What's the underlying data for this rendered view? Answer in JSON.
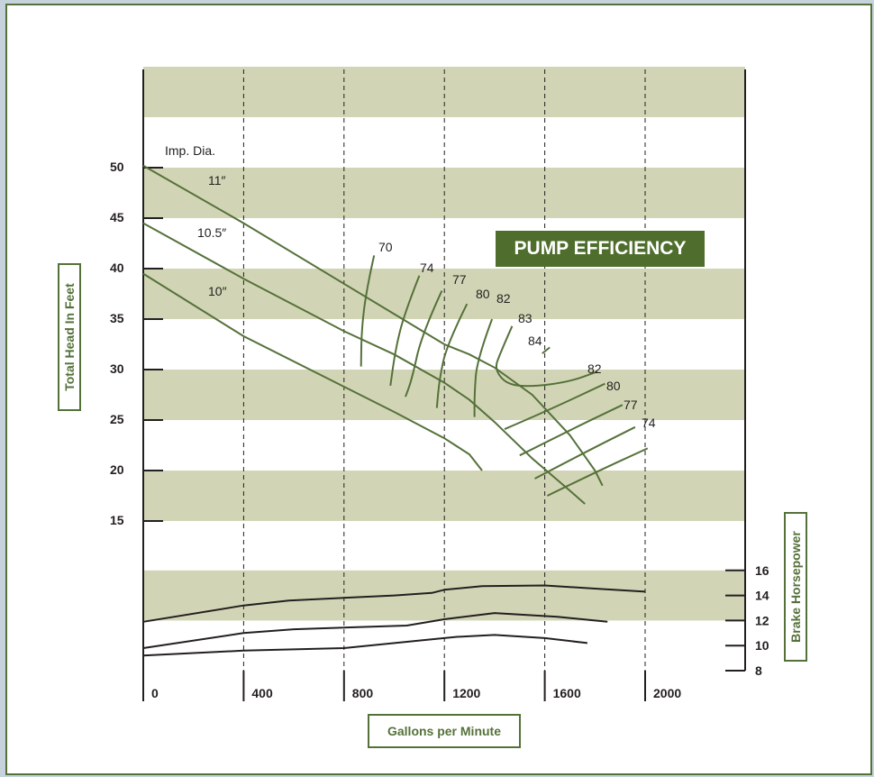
{
  "chart_data": {
    "type": "line",
    "title": "PUMP EFFICIENCY",
    "xlabel": "Gallons per Minute",
    "ylabel": "Total Head In Feet",
    "y2label": "Brake Horsepower",
    "xlim": [
      0,
      2000
    ],
    "ylim": [
      15,
      50
    ],
    "y2lim": [
      8,
      16
    ],
    "x_ticks": [
      0,
      400,
      800,
      1200,
      1600,
      2000
    ],
    "y_ticks": [
      50,
      45,
      40,
      35,
      30,
      25,
      20,
      15
    ],
    "y2_ticks": [
      16,
      14,
      12,
      10,
      8
    ],
    "grid": "vertical dashed at x ticks, alternating horizontal bands",
    "impeller_label": "Imp. Dia.",
    "head_curves": [
      {
        "name": "11″",
        "points": [
          [
            0,
            50.2
          ],
          [
            400,
            44.5
          ],
          [
            800,
            38.5
          ],
          [
            1000,
            35.5
          ],
          [
            1200,
            32.5
          ],
          [
            1300,
            31.5
          ],
          [
            1400,
            30.2
          ],
          [
            1550,
            27.5
          ],
          [
            1700,
            23.5
          ],
          [
            1800,
            20.0
          ],
          [
            1830,
            18.5
          ]
        ]
      },
      {
        "name": "10.5″",
        "points": [
          [
            0,
            44.5
          ],
          [
            400,
            39.0
          ],
          [
            800,
            33.8
          ],
          [
            1000,
            31.5
          ],
          [
            1200,
            28.7
          ],
          [
            1300,
            27.0
          ],
          [
            1400,
            24.8
          ],
          [
            1550,
            21.2
          ],
          [
            1700,
            18.0
          ],
          [
            1760,
            16.7
          ]
        ]
      },
      {
        "name": "10″",
        "points": [
          [
            0,
            39.5
          ],
          [
            400,
            33.3
          ],
          [
            800,
            28.3
          ],
          [
            1000,
            25.8
          ],
          [
            1200,
            23.2
          ],
          [
            1300,
            21.6
          ],
          [
            1350,
            20.0
          ]
        ]
      }
    ],
    "efficiency_curves": [
      {
        "label": "70",
        "points": [
          [
            920,
            41.3
          ],
          [
            890,
            38.0
          ],
          [
            870,
            34.0
          ],
          [
            868,
            30.3
          ]
        ]
      },
      {
        "label": "74",
        "points": [
          [
            1100,
            39.3
          ],
          [
            1040,
            35.5
          ],
          [
            1005,
            32.0
          ],
          [
            985,
            28.4
          ]
        ]
      },
      {
        "label": "77",
        "points": [
          [
            1190,
            37.8
          ],
          [
            1110,
            33.5
          ],
          [
            1070,
            29.0
          ],
          [
            1045,
            27.3
          ]
        ]
      },
      {
        "label": "80",
        "points": [
          [
            1290,
            36.5
          ],
          [
            1210,
            32.5
          ],
          [
            1180,
            29.0
          ],
          [
            1170,
            26.2
          ]
        ]
      },
      {
        "label": "82",
        "points": [
          [
            1390,
            35.0
          ],
          [
            1330,
            31.0
          ],
          [
            1320,
            27.6
          ],
          [
            1320,
            25.3
          ]
        ]
      },
      {
        "label": "83",
        "points": [
          [
            1470,
            34.3
          ],
          [
            1420,
            31.5
          ],
          [
            1400,
            30.0
          ],
          [
            1450,
            28.5
          ],
          [
            1550,
            28.3
          ],
          [
            1700,
            28.8
          ],
          [
            1810,
            29.8
          ]
        ]
      },
      {
        "label": "84",
        "points": [
          [
            1590,
            31.6
          ],
          [
            1620,
            32.2
          ]
        ]
      },
      {
        "label": "82",
        "points": [
          [
            1440,
            24.1
          ],
          [
            1600,
            25.8
          ],
          [
            1840,
            28.6
          ]
        ]
      },
      {
        "label": "80",
        "points": [
          [
            1500,
            21.5
          ],
          [
            1700,
            24.0
          ],
          [
            1910,
            26.5
          ]
        ]
      },
      {
        "label": "77",
        "points": [
          [
            1560,
            19.2
          ],
          [
            1760,
            21.8
          ],
          [
            1960,
            24.3
          ]
        ]
      },
      {
        "label": "74",
        "points": [
          [
            1610,
            17.5
          ],
          [
            1800,
            19.8
          ],
          [
            2010,
            22.2
          ]
        ]
      }
    ],
    "bhp_curves": [
      {
        "name": "11″",
        "points": [
          [
            0,
            11.9
          ],
          [
            400,
            13.2
          ],
          [
            580,
            13.6
          ],
          [
            1000,
            14.0
          ],
          [
            1150,
            14.2
          ],
          [
            1200,
            14.45
          ],
          [
            1350,
            14.75
          ],
          [
            1600,
            14.8
          ],
          [
            1800,
            14.55
          ],
          [
            2000,
            14.3
          ]
        ]
      },
      {
        "name": "10.5″",
        "points": [
          [
            0,
            9.8
          ],
          [
            400,
            11.0
          ],
          [
            600,
            11.3
          ],
          [
            1050,
            11.6
          ],
          [
            1200,
            12.1
          ],
          [
            1400,
            12.6
          ],
          [
            1650,
            12.3
          ],
          [
            1850,
            11.9
          ]
        ]
      },
      {
        "name": "10″",
        "points": [
          [
            0,
            9.2
          ],
          [
            400,
            9.6
          ],
          [
            800,
            9.8
          ],
          [
            1100,
            10.4
          ],
          [
            1250,
            10.7
          ],
          [
            1400,
            10.85
          ],
          [
            1600,
            10.6
          ],
          [
            1770,
            10.2
          ]
        ]
      }
    ]
  }
}
